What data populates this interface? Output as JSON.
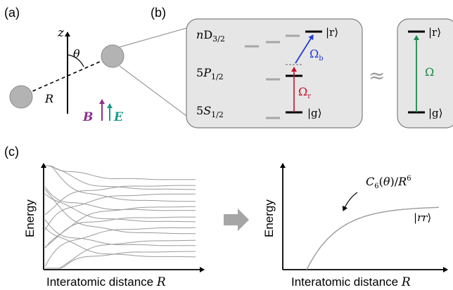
{
  "colors": {
    "atom_fill": "#b3b3b3",
    "box_fill": "#e6e6e6",
    "box_stroke": "#7f7f7f",
    "blue": "#1f3bd6",
    "red": "#c8102e",
    "green": "#1e8a4a",
    "purple": "#8e2f8e",
    "teal": "#1a9b8b",
    "curve": "#9a9a9a",
    "arrow_gray": "#a6a6a6"
  },
  "panel_a": {
    "label": "(a)",
    "z_label": "z",
    "theta_label": "θ",
    "R_label": "R",
    "B_label": "B",
    "E_label": "E"
  },
  "panel_b": {
    "label": "(b)",
    "level_nd": "nD₃/₂",
    "level_5p": "5P₁/₂",
    "level_5s": "5S₁/₂",
    "ket_r": "|r⟩",
    "ket_g": "|g⟩",
    "omega_b": "Ω_b",
    "omega_r": "Ω_r",
    "approx": "≈",
    "omega": "Ω",
    "ket_r_eff": "|r⟩",
    "ket_g_eff": "|g⟩"
  },
  "panel_c": {
    "label": "(c)",
    "left_ylabel": "Energy",
    "left_xlabel": "Interatomic distance R",
    "right_ylabel": "Energy",
    "right_xlabel": "Interatomic distance R",
    "annotation": "C₆(θ)/R⁶",
    "state_label": "|rr⟩"
  }
}
